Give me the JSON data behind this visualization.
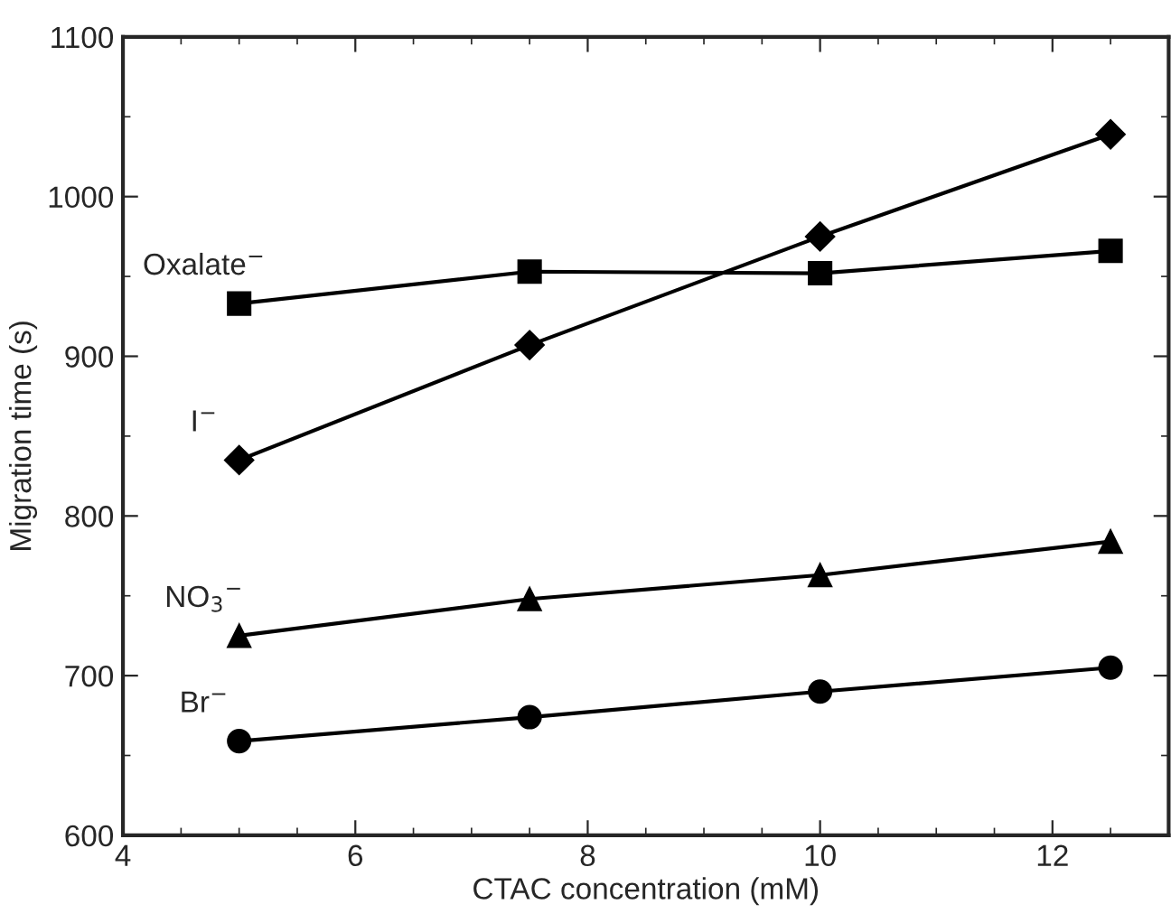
{
  "chart_data": {
    "type": "line",
    "xlabel": "CTAC concentration (mM)",
    "ylabel": "Migration time (s)",
    "x": [
      5,
      7.5,
      10,
      12.5
    ],
    "series": [
      {
        "name": "Oxalate$^{−}$",
        "color": "#000000",
        "marker": "square",
        "values": [
          933,
          953,
          952,
          966
        ]
      },
      {
        "name": "I$^{−}$",
        "color": "#000000",
        "marker": "diamond",
        "values": [
          835,
          907,
          975,
          1039
        ]
      },
      {
        "name": "NO$_{3}$$^{−}$",
        "color": "#000000",
        "marker": "triangle",
        "values": [
          725,
          748,
          763,
          784
        ]
      },
      {
        "name": "Br$^{−}$",
        "color": "#000000",
        "marker": "circle",
        "values": [
          659,
          674,
          690,
          705
        ]
      }
    ],
    "xlim": [
      4,
      13
    ],
    "xticks": [
      4,
      6,
      8,
      10,
      12
    ],
    "ylim": [
      600,
      1100
    ],
    "yticks": [
      600,
      700,
      800,
      900,
      1000,
      1100
    ],
    "grid": false,
    "legend": false,
    "line_style": "solid"
  }
}
